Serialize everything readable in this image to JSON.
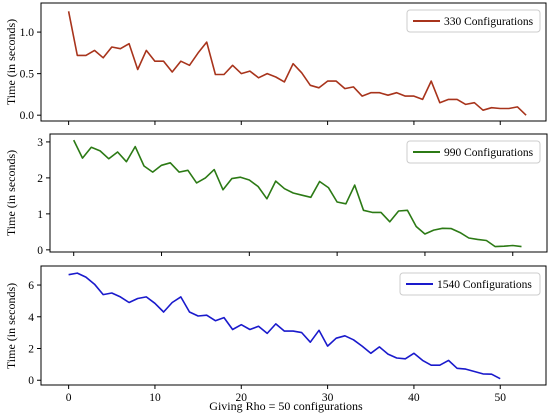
{
  "chart_data": [
    {
      "type": "line",
      "ylabel": "Time (in seconds)",
      "xlabel": "",
      "xlim": [
        -3.2,
        55.3
      ],
      "ylim": [
        -0.07,
        1.35
      ],
      "xticks": [
        0,
        10,
        20,
        30,
        40,
        50
      ],
      "yticks": [
        0.0,
        0.5,
        1.0
      ],
      "ytick_labels": [
        "0.0",
        "0.5",
        "1.0"
      ],
      "show_xtick_labels": false,
      "legend_position": "top-right",
      "grid": false,
      "series": [
        {
          "name": "330 Configurations",
          "color": "#a8341c",
          "x": [
            0,
            1,
            2,
            3,
            4,
            5,
            6,
            7,
            8,
            9,
            10,
            11,
            12,
            13,
            14,
            15,
            16,
            17,
            18,
            19,
            20,
            21,
            22,
            23,
            24,
            25,
            26,
            27,
            28,
            29,
            30,
            31,
            32,
            33,
            34,
            35,
            36,
            37,
            38,
            39,
            40,
            41,
            42,
            43,
            44,
            45,
            46,
            47,
            48,
            49,
            50,
            51,
            52,
            53
          ],
          "values": [
            1.25,
            0.72,
            0.72,
            0.78,
            0.69,
            0.82,
            0.8,
            0.86,
            0.55,
            0.78,
            0.65,
            0.65,
            0.52,
            0.65,
            0.6,
            0.75,
            0.88,
            0.49,
            0.49,
            0.6,
            0.5,
            0.53,
            0.45,
            0.5,
            0.46,
            0.4,
            0.62,
            0.51,
            0.36,
            0.33,
            0.41,
            0.41,
            0.32,
            0.34,
            0.23,
            0.27,
            0.27,
            0.24,
            0.27,
            0.23,
            0.23,
            0.19,
            0.41,
            0.15,
            0.19,
            0.19,
            0.13,
            0.15,
            0.06,
            0.09,
            0.08,
            0.08,
            0.1,
            0.0
          ]
        }
      ]
    },
    {
      "type": "line",
      "ylabel": "Time (in seconds)",
      "xlabel": "",
      "xlim": [
        -2.7,
        53.9
      ],
      "ylim": [
        -0.06,
        3.22
      ],
      "xticks": [
        0,
        10,
        20,
        30,
        40,
        50
      ],
      "yticks": [
        0,
        1,
        2,
        3
      ],
      "ytick_labels": [
        "0",
        "1",
        "2",
        "3"
      ],
      "show_xtick_labels": false,
      "legend_position": "top-right",
      "grid": false,
      "series": [
        {
          "name": "990 Configurations",
          "color": "#2c7a15",
          "x": [
            0,
            1,
            2,
            3,
            4,
            5,
            6,
            7,
            8,
            9,
            10,
            11,
            12,
            13,
            14,
            15,
            16,
            17,
            18,
            19,
            20,
            21,
            22,
            23,
            24,
            25,
            26,
            27,
            28,
            29,
            30,
            31,
            32,
            33,
            34,
            35,
            36,
            37,
            38,
            39,
            40,
            41,
            42,
            43,
            44,
            45,
            46,
            47,
            48,
            49,
            50,
            51
          ],
          "values": [
            3.05,
            2.55,
            2.85,
            2.75,
            2.53,
            2.72,
            2.45,
            2.87,
            2.33,
            2.16,
            2.35,
            2.42,
            2.16,
            2.21,
            1.86,
            2.0,
            2.23,
            1.67,
            1.98,
            2.02,
            1.94,
            1.76,
            1.42,
            1.91,
            1.7,
            1.58,
            1.52,
            1.46,
            1.9,
            1.73,
            1.33,
            1.28,
            1.8,
            1.1,
            1.04,
            1.04,
            0.78,
            1.08,
            1.1,
            0.65,
            0.44,
            0.55,
            0.6,
            0.59,
            0.48,
            0.33,
            0.29,
            0.26,
            0.09,
            0.1,
            0.12,
            0.09
          ]
        }
      ]
    },
    {
      "type": "line",
      "ylabel": "Time (in seconds)",
      "xlabel": "Giving Rho = 50 configurations",
      "xlim": [
        -3.2,
        55.3
      ],
      "ylim": [
        -0.3,
        7.2
      ],
      "xticks": [
        0,
        10,
        20,
        30,
        40,
        50
      ],
      "xtick_labels": [
        "0",
        "10",
        "20",
        "30",
        "40",
        "50"
      ],
      "yticks": [
        0,
        2,
        4,
        6
      ],
      "ytick_labels": [
        "0",
        "2",
        "4",
        "6"
      ],
      "show_xtick_labels": true,
      "legend_position": "top-right",
      "grid": false,
      "series": [
        {
          "name": "1540 Configurations",
          "color": "#1a1acc",
          "x": [
            0,
            1,
            2,
            3,
            4,
            5,
            6,
            7,
            8,
            9,
            10,
            11,
            12,
            13,
            14,
            15,
            16,
            17,
            18,
            19,
            20,
            21,
            22,
            23,
            24,
            25,
            26,
            27,
            28,
            29,
            30,
            31,
            32,
            33,
            34,
            35,
            36,
            37,
            38,
            39,
            40,
            41,
            42,
            43,
            44,
            45,
            46,
            47,
            48,
            49,
            50
          ],
          "values": [
            6.65,
            6.75,
            6.5,
            6.05,
            5.4,
            5.5,
            5.25,
            4.9,
            5.15,
            5.25,
            4.85,
            4.3,
            4.9,
            5.25,
            4.3,
            4.05,
            4.1,
            3.75,
            3.95,
            3.2,
            3.5,
            3.2,
            3.4,
            2.95,
            3.55,
            3.1,
            3.1,
            3.0,
            2.4,
            3.15,
            2.15,
            2.65,
            2.8,
            2.55,
            2.15,
            1.7,
            2.1,
            1.65,
            1.4,
            1.35,
            1.7,
            1.25,
            0.95,
            0.95,
            1.25,
            0.75,
            0.7,
            0.55,
            0.4,
            0.38,
            0.1
          ]
        }
      ]
    }
  ]
}
